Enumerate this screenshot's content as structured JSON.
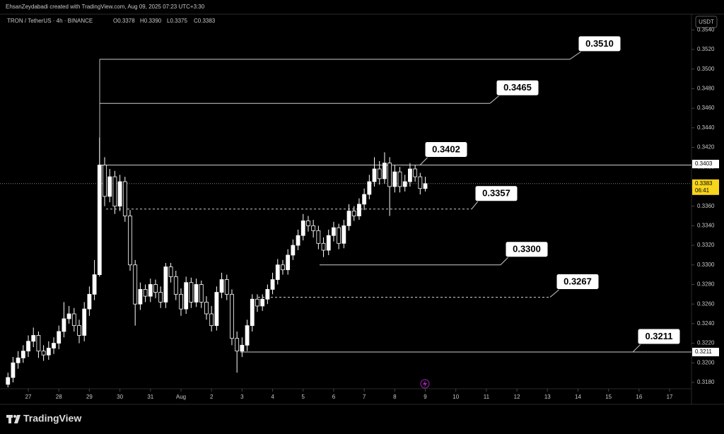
{
  "header": {
    "credit": "EhsanZeydabadi created with TradingView.com, Aug 09, 2025 07:23 UTC+3:30",
    "brand": "TradingView"
  },
  "chart_data": {
    "type": "candlestick",
    "title": "TRON / TetherUS · 4h · BINANCE",
    "ohlc_legend": [
      "O0.3378",
      "H0.3390",
      "L0.3375",
      "C0.3383"
    ],
    "currency_button": "USDT",
    "up_color": "#ffffff",
    "down_color": "#000000",
    "grid": false,
    "open": [
      0.3178,
      0.3185,
      0.32,
      0.3205,
      0.3212,
      0.3222,
      0.3228,
      0.3212,
      0.3208,
      0.3215,
      0.322,
      0.3232,
      0.3245,
      0.325,
      0.3238,
      0.3228,
      0.3255,
      0.327,
      0.329,
      0.3402,
      0.337,
      0.339,
      0.336,
      0.3385,
      0.335,
      0.33,
      0.326,
      0.3275,
      0.3268,
      0.328,
      0.3272,
      0.3262,
      0.3298,
      0.3288,
      0.327,
      0.3255,
      0.3282,
      0.3262,
      0.328,
      0.3262,
      0.325,
      0.3238,
      0.3272,
      0.3285,
      0.327,
      0.3225,
      0.3212,
      0.3218,
      0.3238,
      0.3265,
      0.3258,
      0.3265,
      0.3275,
      0.3285,
      0.33,
      0.3295,
      0.331,
      0.332,
      0.333,
      0.3345,
      0.334,
      0.3335,
      0.3322,
      0.3315,
      0.333,
      0.3338,
      0.3322,
      0.334,
      0.3355,
      0.335,
      0.3362,
      0.3372,
      0.3385,
      0.3398,
      0.3388,
      0.3404,
      0.338,
      0.3395,
      0.338,
      0.3385,
      0.3398,
      0.339,
      0.3378
    ],
    "high": [
      0.319,
      0.3206,
      0.3212,
      0.3218,
      0.3228,
      0.3236,
      0.3232,
      0.3218,
      0.3222,
      0.3226,
      0.3238,
      0.3262,
      0.3258,
      0.3256,
      0.3244,
      0.3262,
      0.3278,
      0.3305,
      0.343,
      0.341,
      0.3398,
      0.3396,
      0.3392,
      0.339,
      0.3356,
      0.3305,
      0.3282,
      0.328,
      0.3286,
      0.3285,
      0.3278,
      0.3302,
      0.3302,
      0.3294,
      0.3276,
      0.3288,
      0.3287,
      0.3286,
      0.3284,
      0.3268,
      0.3258,
      0.3278,
      0.3292,
      0.329,
      0.3275,
      0.3232,
      0.3226,
      0.3244,
      0.327,
      0.327,
      0.327,
      0.328,
      0.3292,
      0.3306,
      0.3305,
      0.3316,
      0.3326,
      0.3336,
      0.3352,
      0.335,
      0.3346,
      0.334,
      0.3328,
      0.3336,
      0.3344,
      0.3342,
      0.3346,
      0.3362,
      0.336,
      0.3368,
      0.3378,
      0.3392,
      0.341,
      0.3406,
      0.3415,
      0.341,
      0.3402,
      0.34,
      0.3392,
      0.3404,
      0.3402,
      0.3394,
      0.339
    ],
    "low": [
      0.3175,
      0.318,
      0.3194,
      0.32,
      0.3206,
      0.3216,
      0.3205,
      0.3202,
      0.3203,
      0.3209,
      0.3214,
      0.3226,
      0.324,
      0.3232,
      0.322,
      0.3222,
      0.3248,
      0.3264,
      0.3288,
      0.336,
      0.3364,
      0.3352,
      0.3355,
      0.3344,
      0.3294,
      0.3238,
      0.3254,
      0.3262,
      0.3262,
      0.3266,
      0.3256,
      0.3256,
      0.3282,
      0.3264,
      0.3248,
      0.325,
      0.3256,
      0.3257,
      0.3256,
      0.3244,
      0.3232,
      0.3233,
      0.3266,
      0.3264,
      0.3218,
      0.319,
      0.3206,
      0.3212,
      0.3232,
      0.3252,
      0.3253,
      0.326,
      0.327,
      0.328,
      0.329,
      0.329,
      0.3305,
      0.3315,
      0.3325,
      0.3334,
      0.3328,
      0.3316,
      0.3308,
      0.331,
      0.3324,
      0.3316,
      0.3317,
      0.3335,
      0.3345,
      0.3346,
      0.3356,
      0.3367,
      0.338,
      0.3382,
      0.3383,
      0.335,
      0.3374,
      0.3374,
      0.3375,
      0.338,
      0.3385,
      0.3372,
      0.3375
    ],
    "close": [
      0.3185,
      0.32,
      0.3205,
      0.3212,
      0.3222,
      0.3228,
      0.3212,
      0.3208,
      0.3215,
      0.322,
      0.3232,
      0.3245,
      0.325,
      0.3238,
      0.3228,
      0.3255,
      0.327,
      0.329,
      0.3402,
      0.337,
      0.339,
      0.336,
      0.3385,
      0.335,
      0.33,
      0.326,
      0.3275,
      0.3268,
      0.328,
      0.3272,
      0.3262,
      0.3298,
      0.3288,
      0.327,
      0.3255,
      0.3282,
      0.3262,
      0.328,
      0.3262,
      0.325,
      0.3238,
      0.3272,
      0.3285,
      0.327,
      0.3225,
      0.3212,
      0.3218,
      0.3238,
      0.3265,
      0.3258,
      0.3265,
      0.3275,
      0.3285,
      0.33,
      0.3295,
      0.331,
      0.332,
      0.333,
      0.3345,
      0.334,
      0.3335,
      0.3322,
      0.3315,
      0.333,
      0.3338,
      0.3322,
      0.334,
      0.3355,
      0.335,
      0.3362,
      0.3372,
      0.3385,
      0.3398,
      0.3388,
      0.3404,
      0.338,
      0.3395,
      0.338,
      0.3385,
      0.3398,
      0.339,
      0.3378,
      0.3383
    ],
    "xlim": [
      -1.56,
      134.3
    ],
    "xticks": [
      {
        "value": 4,
        "label": "27"
      },
      {
        "value": 10,
        "label": "28"
      },
      {
        "value": 16,
        "label": "29"
      },
      {
        "value": 22,
        "label": "30"
      },
      {
        "value": 28,
        "label": "31"
      },
      {
        "value": 34,
        "label": "Aug"
      },
      {
        "value": 40,
        "label": "2"
      },
      {
        "value": 46,
        "label": "3"
      },
      {
        "value": 52,
        "label": "4"
      },
      {
        "value": 58,
        "label": "5"
      },
      {
        "value": 64,
        "label": "6"
      },
      {
        "value": 70,
        "label": "7"
      },
      {
        "value": 76,
        "label": "8"
      },
      {
        "value": 82,
        "label": "9"
      },
      {
        "value": 88,
        "label": "10"
      },
      {
        "value": 94,
        "label": "11"
      },
      {
        "value": 100,
        "label": "12"
      },
      {
        "value": 106,
        "label": "13"
      },
      {
        "value": 112,
        "label": "14"
      },
      {
        "value": 118,
        "label": "15"
      },
      {
        "value": 124,
        "label": "16"
      },
      {
        "value": 130,
        "label": "17"
      }
    ],
    "ylim": [
      0.31735,
      0.35561
    ],
    "yticks": [
      {
        "value": 0.318,
        "label": "0.3180"
      },
      {
        "value": 0.32,
        "label": "0.3200"
      },
      {
        "value": 0.322,
        "label": "0.3220"
      },
      {
        "value": 0.324,
        "label": "0.3240"
      },
      {
        "value": 0.326,
        "label": "0.3260"
      },
      {
        "value": 0.328,
        "label": "0.3280"
      },
      {
        "value": 0.33,
        "label": "0.3300"
      },
      {
        "value": 0.332,
        "label": "0.3320"
      },
      {
        "value": 0.334,
        "label": "0.3340"
      },
      {
        "value": 0.336,
        "label": "0.3360"
      },
      {
        "value": 0.338,
        "label": "0.3380"
      },
      {
        "value": 0.34,
        "label": "0.3400"
      },
      {
        "value": 0.342,
        "label": "0.3420"
      },
      {
        "value": 0.344,
        "label": "0.3440"
      },
      {
        "value": 0.346,
        "label": "0.3460"
      },
      {
        "value": 0.348,
        "label": "0.3480"
      },
      {
        "value": 0.35,
        "label": "0.3500"
      },
      {
        "value": 0.352,
        "label": "0.3520"
      },
      {
        "value": 0.354,
        "label": "0.3540"
      }
    ],
    "levels": [
      {
        "value": 0.351,
        "label": "0.3510",
        "style": "solid"
      },
      {
        "value": 0.3465,
        "style": "solid"
      },
      {
        "value": 0.3402,
        "style": "solid"
      },
      {
        "value": 0.3357,
        "style": "dashed"
      },
      {
        "value": 0.33,
        "label": "0.3300",
        "style": "solid"
      },
      {
        "value": 0.3267,
        "style": "dashed"
      },
      {
        "value": 0.3211,
        "style": "solid"
      }
    ],
    "axis_labels": [
      0.3403,
      0.3211
    ],
    "last_price": {
      "value": 0.3383,
      "countdown": "06:41"
    }
  }
}
